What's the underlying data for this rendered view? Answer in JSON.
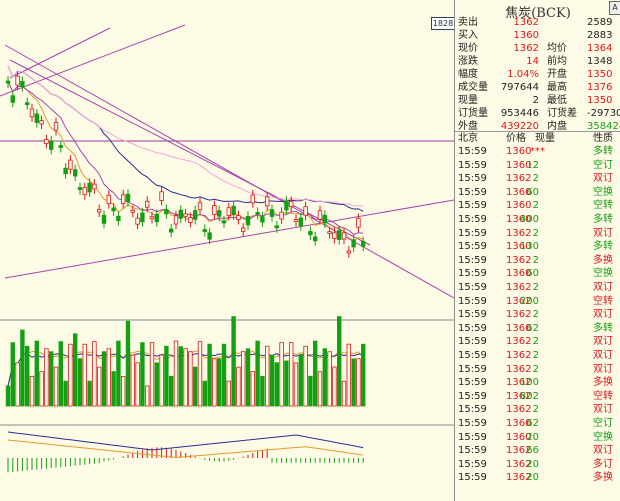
{
  "title": "焦炭(BCK)",
  "badge": "1828",
  "colors": {
    "up": "#e0161b",
    "down": "#13a013",
    "bg": "#fdfbe6"
  },
  "quote": [
    {
      "label": "卖出",
      "value": "1362",
      "extra_label": "",
      "extra_value": "2589",
      "value_color": "red",
      "extra_color": "dark"
    },
    {
      "label": "买入",
      "value": "1360",
      "extra_label": "",
      "extra_value": "2883",
      "value_color": "red",
      "extra_color": "dark"
    },
    {
      "label": "现价",
      "value": "1362",
      "extra_label": "均价",
      "extra_value": "1364",
      "value_color": "red",
      "extra_color": "red"
    },
    {
      "label": "涨跌",
      "value": "14",
      "extra_label": "前均",
      "extra_value": "1348",
      "value_color": "red",
      "extra_color": "dark"
    },
    {
      "label": "幅度",
      "value": "1.04%",
      "extra_label": "开盘",
      "extra_value": "1350",
      "value_color": "red",
      "extra_color": "red"
    },
    {
      "label": "成交量",
      "value": "797644",
      "extra_label": "最高",
      "extra_value": "1376",
      "value_color": "dark",
      "extra_color": "red"
    },
    {
      "label": "现量",
      "value": "2",
      "extra_label": "最低",
      "extra_value": "1350",
      "value_color": "dark",
      "extra_color": "red"
    },
    {
      "label": "订货量",
      "value": "953446",
      "extra_label": "订货差",
      "extra_value": "-29730",
      "value_color": "dark",
      "extra_color": "dark"
    },
    {
      "label": "外盘",
      "value": "439220",
      "extra_label": "内盘",
      "extra_value": "358424",
      "value_color": "red",
      "extra_color": "green"
    }
  ],
  "trades_header": {
    "time": "北京",
    "price": "价格",
    "vol": "现量",
    "type": "性质"
  },
  "trades": [
    {
      "time": "15:59",
      "price": "1360",
      "vol": "***",
      "type": "多转",
      "tc": "green"
    },
    {
      "time": "15:59",
      "price": "1360",
      "vol": "12",
      "type": "空订",
      "tc": "green"
    },
    {
      "time": "15:59",
      "price": "1362",
      "vol": "2",
      "type": "双订",
      "tc": "red"
    },
    {
      "time": "15:59",
      "price": "1360",
      "vol": "60",
      "type": "空换",
      "tc": "green"
    },
    {
      "time": "15:59",
      "price": "1360",
      "vol": "2",
      "type": "空转",
      "tc": "green"
    },
    {
      "time": "15:59",
      "price": "1360",
      "vol": "400",
      "type": "多转",
      "tc": "green"
    },
    {
      "time": "15:59",
      "price": "1362",
      "vol": "2",
      "type": "双订",
      "tc": "red"
    },
    {
      "time": "15:59",
      "price": "1360",
      "vol": "130",
      "type": "多转",
      "tc": "green"
    },
    {
      "time": "15:59",
      "price": "1362",
      "vol": "2",
      "type": "多换",
      "tc": "red"
    },
    {
      "time": "15:59",
      "price": "1360",
      "vol": "60",
      "type": "空换",
      "tc": "green"
    },
    {
      "time": "15:59",
      "price": "1362",
      "vol": "2",
      "type": "双订",
      "tc": "red"
    },
    {
      "time": "15:59",
      "price": "1362",
      "vol": "200",
      "type": "空转",
      "tc": "red"
    },
    {
      "time": "15:59",
      "price": "1362",
      "vol": "2",
      "type": "双订",
      "tc": "red"
    },
    {
      "time": "15:59",
      "price": "1360",
      "vol": "62",
      "type": "多转",
      "tc": "green"
    },
    {
      "time": "15:59",
      "price": "1362",
      "vol": "2",
      "type": "双订",
      "tc": "red"
    },
    {
      "time": "15:59",
      "price": "1362",
      "vol": "2",
      "type": "双订",
      "tc": "red"
    },
    {
      "time": "15:59",
      "price": "1362",
      "vol": "2",
      "type": "双订",
      "tc": "red"
    },
    {
      "time": "15:59",
      "price": "1362",
      "vol": "100",
      "type": "多换",
      "tc": "red"
    },
    {
      "time": "15:59",
      "price": "1362",
      "vol": "802",
      "type": "空转",
      "tc": "red"
    },
    {
      "time": "15:59",
      "price": "1362",
      "vol": "2",
      "type": "双订",
      "tc": "red"
    },
    {
      "time": "15:59",
      "price": "1360",
      "vol": "62",
      "type": "空订",
      "tc": "green"
    },
    {
      "time": "15:59",
      "price": "1360",
      "vol": "20",
      "type": "空换",
      "tc": "green"
    },
    {
      "time": "15:59",
      "price": "1362",
      "vol": "66",
      "type": "双订",
      "tc": "red"
    },
    {
      "time": "15:59",
      "price": "1362",
      "vol": "20",
      "type": "多订",
      "tc": "red"
    },
    {
      "time": "15:59",
      "price": "1362",
      "vol": "20",
      "type": "多换",
      "tc": "red"
    }
  ]
}
